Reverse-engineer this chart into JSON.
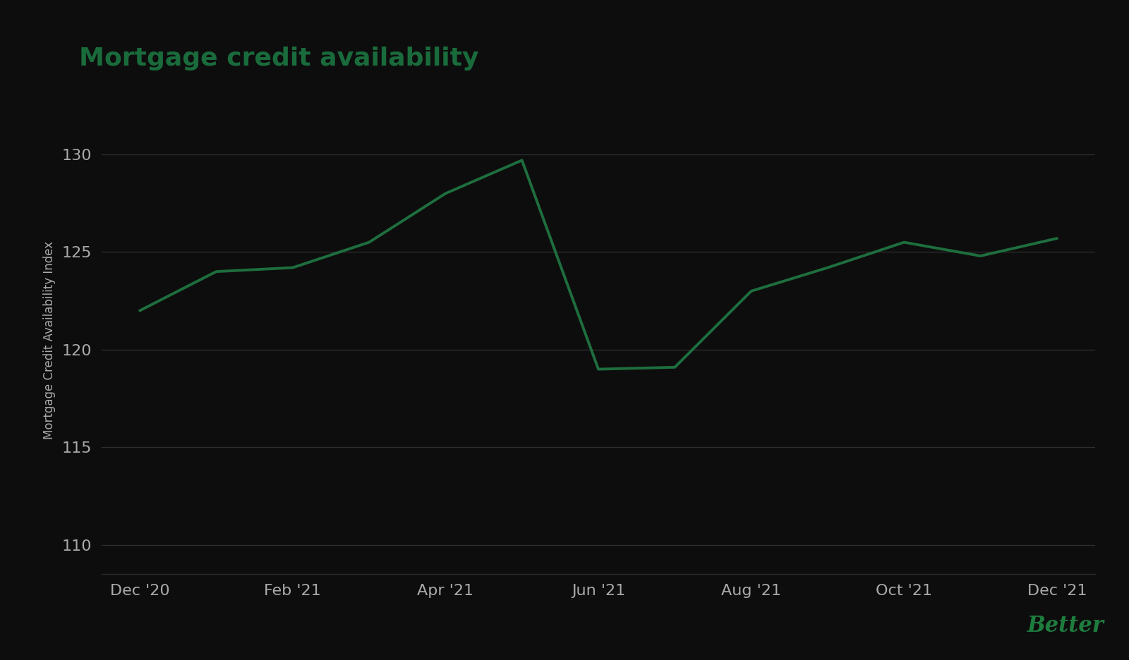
{
  "title": "Mortgage credit availability",
  "ylabel": "Mortgage Credit Availability Index",
  "background_color": "#0d0d0d",
  "title_color": "#1a6b3c",
  "line_color": "#1e6e3e",
  "text_color": "#aaaaaa",
  "grid_color": "#2e2e2e",
  "better_color": "#1e7d3e",
  "x_labels": [
    "Dec '20",
    "Feb '21",
    "Apr '21",
    "Jun '21",
    "Aug '21",
    "Oct '21",
    "Dec '21"
  ],
  "x_positions": [
    0,
    2,
    4,
    6,
    8,
    10,
    12
  ],
  "data_x": [
    0,
    1,
    2,
    3,
    4,
    5,
    6,
    7,
    8,
    9,
    10,
    11,
    12
  ],
  "data_y": [
    122.0,
    124.0,
    124.2,
    125.5,
    128.0,
    129.7,
    119.0,
    119.1,
    123.0,
    124.2,
    125.5,
    124.8,
    125.7
  ],
  "ylim": [
    108.5,
    132.5
  ],
  "yticks": [
    110,
    115,
    120,
    125,
    130
  ],
  "title_fontsize": 26,
  "label_fontsize": 12,
  "tick_fontsize": 16,
  "line_width": 2.8,
  "better_fontsize": 22
}
